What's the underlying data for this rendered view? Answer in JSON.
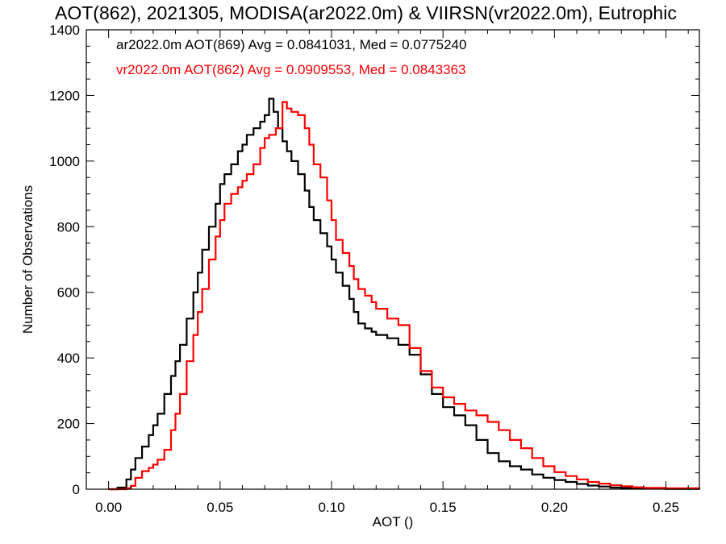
{
  "chart_data": {
    "type": "line",
    "title": "AOT(862), 2021305, MODISA(ar2022.0m) & VIIRSN(vr2022.0m), Eutrophic",
    "xlabel": "AOT ()",
    "ylabel": "Number of Observations",
    "xlim": [
      -0.01,
      0.265
    ],
    "ylim": [
      0,
      1400
    ],
    "xticks": [
      {
        "value": 0.0,
        "label": "0.00"
      },
      {
        "value": 0.05,
        "label": "0.05"
      },
      {
        "value": 0.1,
        "label": "0.10"
      },
      {
        "value": 0.15,
        "label": "0.15"
      },
      {
        "value": 0.2,
        "label": "0.20"
      },
      {
        "value": 0.25,
        "label": "0.25"
      }
    ],
    "yticks": [
      {
        "value": 0,
        "label": "0"
      },
      {
        "value": 200,
        "label": "200"
      },
      {
        "value": 400,
        "label": "400"
      },
      {
        "value": 600,
        "label": "600"
      },
      {
        "value": 800,
        "label": "800"
      },
      {
        "value": 1000,
        "label": "1000"
      },
      {
        "value": 1200,
        "label": "1200"
      },
      {
        "value": 1400,
        "label": "1400"
      }
    ],
    "grid": false,
    "legend_placement": "top-left",
    "series": [
      {
        "name": "ar2022.0m AOT(869) Avg = 0.0841031, Med = 0.0775240",
        "color": "#000000",
        "points": [
          [
            0.0,
            0
          ],
          [
            0.004,
            5
          ],
          [
            0.008,
            30
          ],
          [
            0.01,
            60
          ],
          [
            0.012,
            95
          ],
          [
            0.015,
            130
          ],
          [
            0.018,
            165
          ],
          [
            0.02,
            195
          ],
          [
            0.022,
            230
          ],
          [
            0.025,
            290
          ],
          [
            0.028,
            345
          ],
          [
            0.03,
            390
          ],
          [
            0.032,
            440
          ],
          [
            0.035,
            520
          ],
          [
            0.038,
            600
          ],
          [
            0.04,
            660
          ],
          [
            0.042,
            730
          ],
          [
            0.045,
            800
          ],
          [
            0.048,
            870
          ],
          [
            0.05,
            930
          ],
          [
            0.052,
            960
          ],
          [
            0.055,
            990
          ],
          [
            0.058,
            1030
          ],
          [
            0.06,
            1050
          ],
          [
            0.062,
            1080
          ],
          [
            0.065,
            1100
          ],
          [
            0.068,
            1120
          ],
          [
            0.07,
            1140
          ],
          [
            0.072,
            1190
          ],
          [
            0.074,
            1150
          ],
          [
            0.076,
            1100
          ],
          [
            0.078,
            1060
          ],
          [
            0.08,
            1030
          ],
          [
            0.082,
            1000
          ],
          [
            0.085,
            960
          ],
          [
            0.088,
            910
          ],
          [
            0.09,
            860
          ],
          [
            0.092,
            820
          ],
          [
            0.095,
            780
          ],
          [
            0.098,
            740
          ],
          [
            0.1,
            700
          ],
          [
            0.102,
            660
          ],
          [
            0.105,
            620
          ],
          [
            0.108,
            580
          ],
          [
            0.11,
            540
          ],
          [
            0.112,
            505
          ],
          [
            0.115,
            490
          ],
          [
            0.118,
            480
          ],
          [
            0.12,
            470
          ],
          [
            0.125,
            460
          ],
          [
            0.13,
            440
          ],
          [
            0.135,
            410
          ],
          [
            0.14,
            350
          ],
          [
            0.145,
            290
          ],
          [
            0.15,
            250
          ],
          [
            0.155,
            225
          ],
          [
            0.16,
            195
          ],
          [
            0.165,
            150
          ],
          [
            0.17,
            110
          ],
          [
            0.175,
            85
          ],
          [
            0.18,
            70
          ],
          [
            0.185,
            60
          ],
          [
            0.19,
            45
          ],
          [
            0.195,
            35
          ],
          [
            0.2,
            28
          ],
          [
            0.205,
            22
          ],
          [
            0.21,
            16
          ],
          [
            0.215,
            11
          ],
          [
            0.22,
            8
          ],
          [
            0.225,
            5
          ],
          [
            0.23,
            4
          ],
          [
            0.24,
            2
          ],
          [
            0.25,
            1
          ],
          [
            0.265,
            0
          ]
        ]
      },
      {
        "name": "vr2022.0m AOT(862) Avg = 0.0909553, Med = 0.0843363",
        "color": "#ff0000",
        "points": [
          [
            0.0,
            0
          ],
          [
            0.008,
            3
          ],
          [
            0.01,
            10
          ],
          [
            0.012,
            35
          ],
          [
            0.015,
            55
          ],
          [
            0.018,
            65
          ],
          [
            0.02,
            75
          ],
          [
            0.022,
            90
          ],
          [
            0.025,
            120
          ],
          [
            0.028,
            180
          ],
          [
            0.03,
            230
          ],
          [
            0.032,
            290
          ],
          [
            0.035,
            390
          ],
          [
            0.038,
            470
          ],
          [
            0.04,
            540
          ],
          [
            0.042,
            610
          ],
          [
            0.045,
            700
          ],
          [
            0.048,
            770
          ],
          [
            0.05,
            820
          ],
          [
            0.052,
            870
          ],
          [
            0.055,
            900
          ],
          [
            0.058,
            920
          ],
          [
            0.06,
            940
          ],
          [
            0.062,
            960
          ],
          [
            0.065,
            990
          ],
          [
            0.068,
            1040
          ],
          [
            0.07,
            1070
          ],
          [
            0.072,
            1080
          ],
          [
            0.075,
            1100
          ],
          [
            0.078,
            1180
          ],
          [
            0.08,
            1160
          ],
          [
            0.082,
            1150
          ],
          [
            0.085,
            1140
          ],
          [
            0.088,
            1100
          ],
          [
            0.09,
            1050
          ],
          [
            0.092,
            990
          ],
          [
            0.095,
            950
          ],
          [
            0.098,
            880
          ],
          [
            0.1,
            820
          ],
          [
            0.102,
            760
          ],
          [
            0.105,
            720
          ],
          [
            0.108,
            680
          ],
          [
            0.11,
            640
          ],
          [
            0.112,
            610
          ],
          [
            0.115,
            590
          ],
          [
            0.118,
            570
          ],
          [
            0.12,
            550
          ],
          [
            0.125,
            520
          ],
          [
            0.13,
            500
          ],
          [
            0.135,
            430
          ],
          [
            0.14,
            360
          ],
          [
            0.145,
            310
          ],
          [
            0.15,
            280
          ],
          [
            0.155,
            260
          ],
          [
            0.16,
            240
          ],
          [
            0.165,
            225
          ],
          [
            0.17,
            205
          ],
          [
            0.175,
            180
          ],
          [
            0.18,
            150
          ],
          [
            0.185,
            125
          ],
          [
            0.19,
            95
          ],
          [
            0.195,
            70
          ],
          [
            0.2,
            52
          ],
          [
            0.205,
            40
          ],
          [
            0.21,
            30
          ],
          [
            0.215,
            22
          ],
          [
            0.22,
            17
          ],
          [
            0.225,
            12
          ],
          [
            0.23,
            9
          ],
          [
            0.235,
            6
          ],
          [
            0.24,
            4
          ],
          [
            0.25,
            3
          ],
          [
            0.265,
            1
          ]
        ]
      }
    ]
  }
}
